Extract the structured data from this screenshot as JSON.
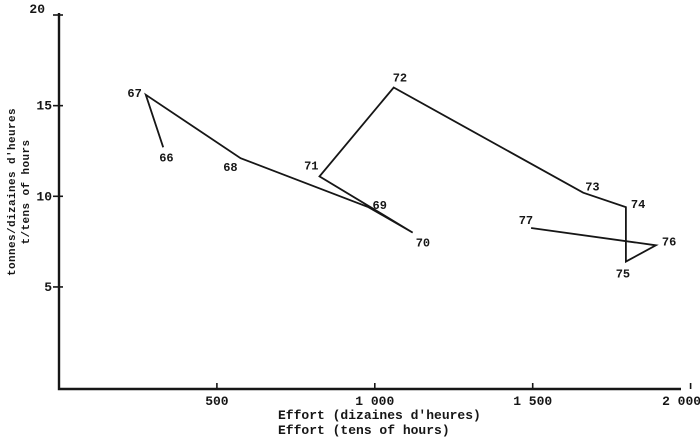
{
  "colors": {
    "ink": "#161616",
    "background": "#ffffff"
  },
  "chart_data": {
    "type": "line",
    "title": "",
    "xlabel_fr": "Effort (dizaines d'heures)",
    "xlabel_en": "Effort (tens of hours)",
    "ylabel_fr": "tonnes/dizaines d'heures",
    "ylabel_en": "t/tens of hours",
    "xlim": [
      0,
      2000
    ],
    "ylim": [
      0,
      20
    ],
    "grid": false,
    "legend": "none",
    "x_ticks": [
      {
        "value": 500,
        "label": "500"
      },
      {
        "value": 1000,
        "label": "1 000"
      },
      {
        "value": 1500,
        "label": "1 500"
      },
      {
        "value": 2000,
        "label": "2 000",
        "dx": -9
      }
    ],
    "y_ticks": [
      {
        "value": 20,
        "label": "20",
        "dx": -7,
        "dy": -6
      },
      {
        "value": 15,
        "label": "15"
      },
      {
        "value": 10,
        "label": "10"
      },
      {
        "value": 5,
        "label": "5"
      }
    ],
    "series": [
      {
        "name": "catch-per-unit-effort-by-year",
        "points": [
          {
            "year": "66",
            "effort": 330,
            "cpue": 12.7,
            "anchor": "start",
            "dx": -4,
            "dy": 14
          },
          {
            "year": "67",
            "effort": 275,
            "cpue": 15.6,
            "anchor": "end",
            "dx": -4,
            "dy": 2
          },
          {
            "year": "68",
            "effort": 575,
            "cpue": 12.1,
            "anchor": "end",
            "dx": -3,
            "dy": 13
          },
          {
            "year": "69",
            "effort": 980,
            "cpue": 9.4,
            "anchor": "start",
            "dx": 4,
            "dy": 2
          },
          {
            "year": "70",
            "effort": 1120,
            "cpue": 8.0,
            "anchor": "start",
            "dx": 3,
            "dy": 14
          },
          {
            "year": "71",
            "effort": 825,
            "cpue": 11.1,
            "anchor": "end",
            "dx": -1,
            "dy": -7
          },
          {
            "year": "72",
            "effort": 1060,
            "cpue": 16.0,
            "anchor": "start",
            "dx": -1,
            "dy": -6
          },
          {
            "year": "73",
            "effort": 1660,
            "cpue": 10.2,
            "anchor": "start",
            "dx": 2,
            "dy": -2
          },
          {
            "year": "74",
            "effort": 1795,
            "cpue": 9.4,
            "anchor": "start",
            "dx": 5,
            "dy": 1
          },
          {
            "year": "75",
            "effort": 1795,
            "cpue": 6.4,
            "anchor": "middle",
            "dx": -3,
            "dy": 16
          },
          {
            "year": "76",
            "effort": 1890,
            "cpue": 7.3,
            "anchor": "start",
            "dx": 6,
            "dy": 0
          },
          {
            "year": "77",
            "effort": 1495,
            "cpue": 8.25,
            "anchor": "end",
            "dx": 2,
            "dy": -4
          }
        ]
      }
    ]
  }
}
